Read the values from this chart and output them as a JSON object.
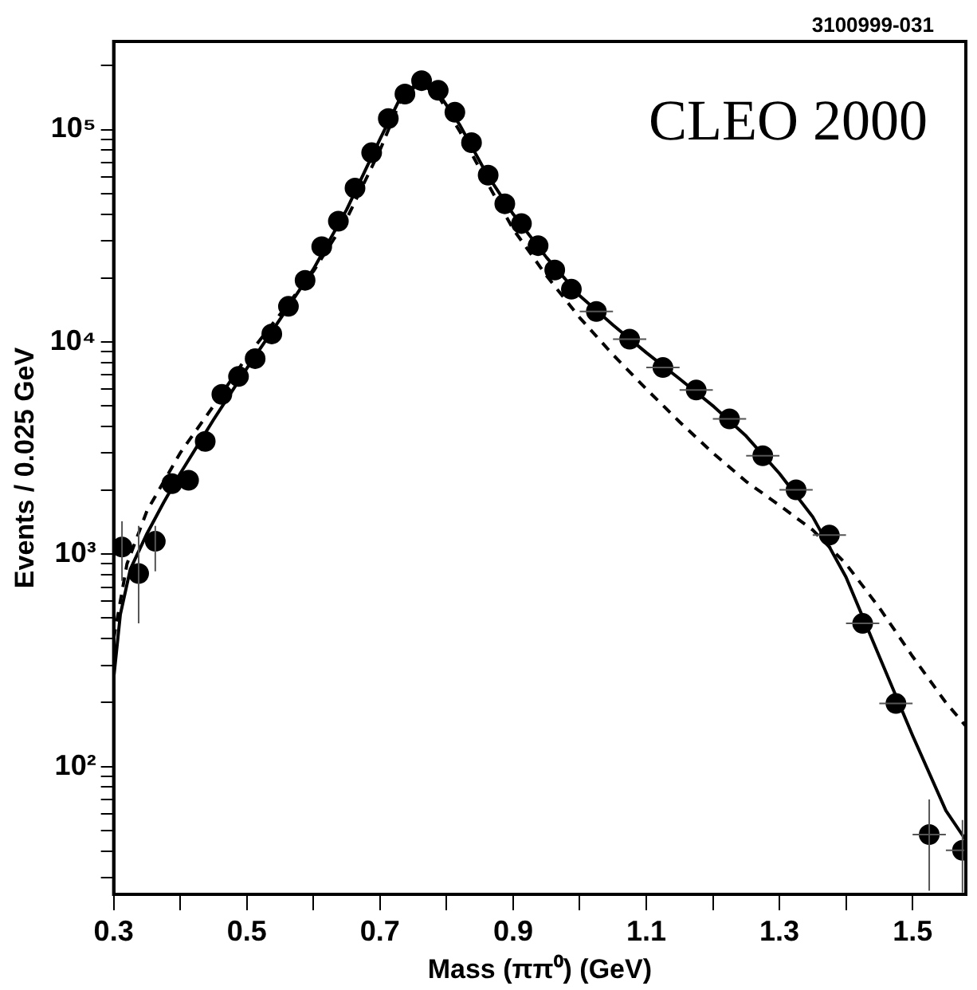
{
  "chart_data": {
    "type": "scatter",
    "xlabel": "Mass (ππ⁰) (GeV)",
    "ylabel": "Events / 0.025 GeV",
    "annotations": [
      "CLEO 2000",
      "3100999-031"
    ],
    "log": "y",
    "grid": false,
    "legend": false,
    "marker": "circle",
    "xlim": [
      0.3,
      1.58
    ],
    "xticks": [
      0.3,
      {
        "value": 0.4,
        "label": null
      },
      0.5,
      {
        "value": 0.6,
        "label": null
      },
      0.7,
      {
        "value": 0.8,
        "label": null
      },
      0.9,
      {
        "value": 1.0,
        "label": null
      },
      1.1,
      {
        "value": 1.2,
        "label": null
      },
      1.3,
      {
        "value": 1.4,
        "label": null
      },
      1.5
    ],
    "ylim": [
      25,
      260000
    ],
    "yticks": [
      {
        "value": 30,
        "label": null
      },
      {
        "value": 40,
        "label": null
      },
      {
        "value": 50,
        "label": null
      },
      {
        "value": 60,
        "label": null
      },
      {
        "value": 70,
        "label": null
      },
      {
        "value": 80,
        "label": null
      },
      {
        "value": 90,
        "label": null
      },
      {
        "value": 100,
        "label": "10²"
      },
      {
        "value": 200,
        "label": null
      },
      {
        "value": 300,
        "label": null
      },
      {
        "value": 400,
        "label": null
      },
      {
        "value": 500,
        "label": null
      },
      {
        "value": 600,
        "label": null
      },
      {
        "value": 700,
        "label": null
      },
      {
        "value": 800,
        "label": null
      },
      {
        "value": 900,
        "label": null
      },
      {
        "value": 1000,
        "label": "10³"
      },
      {
        "value": 2000,
        "label": null
      },
      {
        "value": 3000,
        "label": null
      },
      {
        "value": 4000,
        "label": null
      },
      {
        "value": 5000,
        "label": null
      },
      {
        "value": 6000,
        "label": null
      },
      {
        "value": 7000,
        "label": null
      },
      {
        "value": 8000,
        "label": null
      },
      {
        "value": 9000,
        "label": null
      },
      {
        "value": 10000,
        "label": "10⁴"
      },
      {
        "value": 20000,
        "label": null
      },
      {
        "value": 30000,
        "label": null
      },
      {
        "value": 40000,
        "label": null
      },
      {
        "value": 50000,
        "label": null
      },
      {
        "value": 60000,
        "label": null
      },
      {
        "value": 70000,
        "label": null
      },
      {
        "value": 80000,
        "label": null
      },
      {
        "value": 90000,
        "label": null
      },
      {
        "value": 100000,
        "label": "10⁵"
      },
      {
        "value": 200000,
        "label": null
      }
    ],
    "series": [
      {
        "color": "#000000",
        "x": [
          0.3125,
          0.3375,
          0.3625,
          0.3875,
          0.4125,
          0.4375,
          0.4625,
          0.4875,
          0.5125,
          0.5375,
          0.5625,
          0.5875,
          0.6125,
          0.6375,
          0.6625,
          0.6875,
          0.7125,
          0.7375,
          0.7625,
          0.7875,
          0.8125,
          0.8375,
          0.8625,
          0.8875,
          0.9125,
          0.9375,
          0.9625,
          0.9875,
          1.025,
          1.075,
          1.125,
          1.175,
          1.225,
          1.275,
          1.325,
          1.375,
          1.425,
          1.475,
          1.525,
          1.575
        ],
        "values": [
          1080,
          811,
          1150,
          2150,
          2230,
          3400,
          5660,
          6870,
          8340,
          10900,
          14700,
          19500,
          28100,
          37000,
          53000,
          77800,
          112700,
          147000,
          170000,
          153000,
          120600,
          86700,
          61000,
          44700,
          36100,
          28400,
          21800,
          17700,
          13900,
          10300,
          7570,
          5930,
          4340,
          2910,
          2010,
          1230,
          472,
          198,
          47.8,
          40.3
        ],
        "errors": [
          [
            748,
            1430
          ],
          [
            472,
            1360
          ],
          [
            830,
            1360
          ],
          null,
          null,
          null,
          null,
          null,
          null,
          null,
          null,
          null,
          null,
          null,
          null,
          null,
          null,
          null,
          null,
          null,
          null,
          null,
          null,
          null,
          null,
          null,
          null,
          null,
          null,
          null,
          null,
          null,
          null,
          null,
          null,
          null,
          null,
          null,
          [
            26,
            70
          ],
          [
            25.5,
            56
          ]
        ],
        "xerrors": [
          null,
          null,
          null,
          null,
          null,
          null,
          null,
          null,
          null,
          null,
          null,
          null,
          null,
          null,
          null,
          null,
          null,
          null,
          null,
          null,
          null,
          null,
          null,
          null,
          null,
          null,
          null,
          null,
          0.025,
          0.025,
          0.025,
          0.025,
          0.025,
          0.025,
          0.025,
          0.025,
          0.025,
          0.025,
          0.025,
          0.025
        ]
      },
      {
        "type": "line",
        "color": "#000000",
        "line_style": "solid",
        "marker": "none",
        "x": [
          0.3,
          0.31,
          0.325,
          0.35,
          0.375,
          0.4,
          0.45,
          0.5,
          0.55,
          0.6,
          0.65,
          0.7,
          0.73,
          0.76,
          0.79,
          0.82,
          0.86,
          0.9,
          0.95,
          1.0,
          1.05,
          1.1,
          1.15,
          1.2,
          1.25,
          1.3,
          1.35,
          1.4,
          1.45,
          1.5,
          1.55,
          1.58
        ],
        "values": [
          260,
          520,
          850,
          1250,
          1750,
          2400,
          4300,
          7500,
          12800,
          22000,
          42000,
          90000,
          140000,
          170000,
          145000,
          105000,
          62000,
          40000,
          25000,
          16500,
          12000,
          8900,
          6700,
          5000,
          3600,
          2400,
          1500,
          780,
          330,
          140,
          62,
          45
        ]
      },
      {
        "type": "line",
        "color": "#000000",
        "line_style": "dashed",
        "marker": "none",
        "x": [
          0.3,
          0.32,
          0.35,
          0.4,
          0.45,
          0.5,
          0.55,
          0.6,
          0.65,
          0.7,
          0.73,
          0.76,
          0.79,
          0.82,
          0.86,
          0.9,
          0.95,
          1.0,
          1.05,
          1.1,
          1.15,
          1.2,
          1.25,
          1.3,
          1.35,
          1.4,
          1.45,
          1.5,
          1.55,
          1.58
        ],
        "values": [
          400,
          900,
          1600,
          3000,
          5000,
          8500,
          13500,
          21500,
          38000,
          80000,
          135000,
          168000,
          140000,
          98000,
          57000,
          34000,
          20500,
          13000,
          8700,
          6000,
          4200,
          3000,
          2200,
          1700,
          1300,
          900,
          560,
          330,
          200,
          155
        ]
      }
    ]
  }
}
